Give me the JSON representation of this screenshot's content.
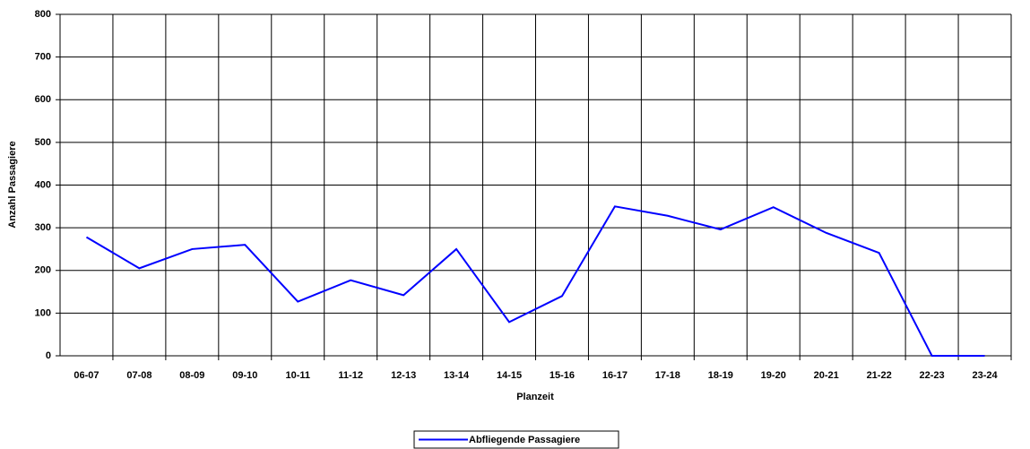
{
  "chart_data": {
    "type": "line",
    "x_label": "Planzeit",
    "y_label": "Anzahl Passagiere",
    "categories": [
      "06-07",
      "07-08",
      "08-09",
      "09-10",
      "10-11",
      "11-12",
      "12-13",
      "13-14",
      "14-15",
      "15-16",
      "16-17",
      "17-18",
      "18-19",
      "19-20",
      "20-21",
      "21-22",
      "22-23",
      "23-24"
    ],
    "series": [
      {
        "name": "Abfliegende Passagiere",
        "color": "#0000ff",
        "values": [
          278,
          205,
          250,
          260,
          127,
          177,
          142,
          250,
          79,
          140,
          350,
          328,
          296,
          348,
          288,
          241,
          0,
          0
        ]
      }
    ],
    "ylim": [
      0,
      800
    ],
    "yticks": [
      0,
      100,
      200,
      300,
      400,
      500,
      600,
      700,
      800
    ],
    "grid": true,
    "legend": "bottom"
  }
}
